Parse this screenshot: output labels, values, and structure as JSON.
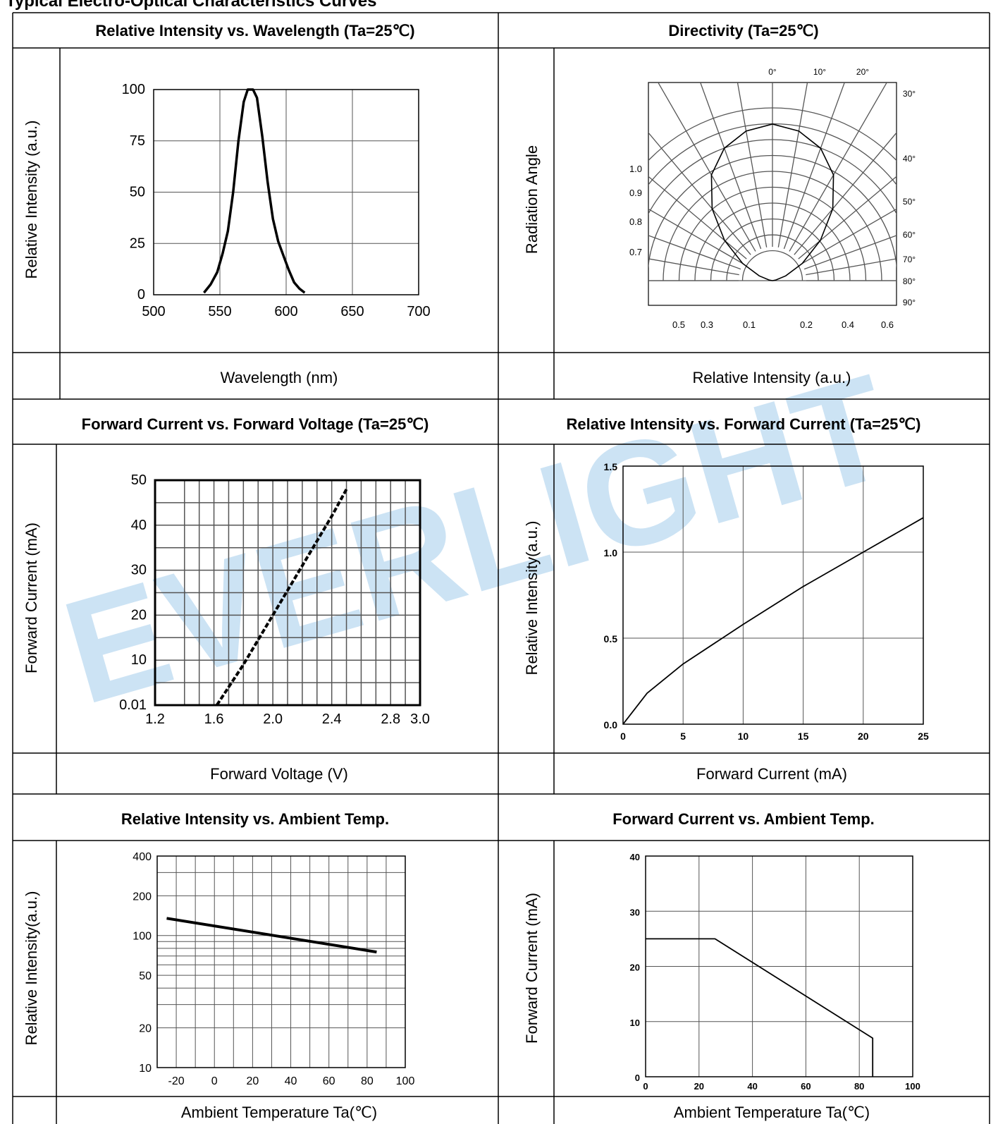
{
  "page_title": "Typical Electro-Optical Characteristics Curves",
  "watermark_text": "EVERLIGHT",
  "colors": {
    "border": "#000000",
    "grid": "#555555",
    "curve": "#000000",
    "watermark": "#8ec2e6"
  },
  "chart_data": [
    {
      "id": "spectrum",
      "type": "line",
      "title": "Relative Intensity vs. Wavelength (Ta=25℃)",
      "ylabel": "Relative Intensity (a.u.)",
      "xlabel": "Wavelength (nm)",
      "xlim": [
        500,
        700
      ],
      "ylim": [
        0,
        100
      ],
      "x_ticks": [
        "500",
        "550",
        "600",
        "650",
        "700"
      ],
      "y_ticks": [
        "0",
        "25",
        "50",
        "75",
        "100"
      ],
      "grid": true,
      "series": [
        {
          "x": [
            538,
            543,
            548,
            552,
            556,
            560,
            564,
            568,
            571,
            575,
            578,
            582,
            586,
            590,
            594,
            598,
            602,
            606,
            610,
            614
          ],
          "values": [
            1,
            5,
            11,
            20,
            31,
            50,
            75,
            94,
            100,
            100,
            96,
            77,
            55,
            37,
            26,
            19,
            12,
            6,
            3,
            1
          ]
        }
      ]
    },
    {
      "id": "directivity",
      "type": "polar",
      "title": "Directivity (Ta=25℃)",
      "ylabel": "Radiation Angle",
      "xlabel": "Relative Intensity (a.u.)",
      "angle_labels": [
        "0°",
        "10°",
        "20°",
        "30°",
        "40°",
        "50°",
        "60°",
        "70°",
        "80°",
        "90°"
      ],
      "left_scale_labels": [
        "1.0",
        "0.9",
        "0.8",
        "0.7"
      ],
      "bottom_labels_left": [
        "0.5",
        "0.3",
        "0.1"
      ],
      "bottom_labels_right": [
        "0.2",
        "0.4",
        "0.6"
      ],
      "series": [
        {
          "angle_deg": [
            0,
            10,
            20,
            30,
            40,
            50,
            60,
            70,
            80,
            90
          ],
          "values": [
            1.0,
            0.97,
            0.9,
            0.78,
            0.6,
            0.4,
            0.22,
            0.09,
            0.02,
            0.0
          ]
        }
      ]
    },
    {
      "id": "iv",
      "type": "line",
      "title": "Forward Current vs. Forward Voltage (Ta=25℃)",
      "ylabel": "Forward Current (mA)",
      "xlabel": "Forward Voltage (V)",
      "xlim": [
        1.2,
        3.0
      ],
      "ylim": [
        0,
        50
      ],
      "x_ticks": [
        "1.2",
        "1.6",
        "2.0",
        "2.4",
        "2.8",
        "3.0"
      ],
      "y_ticks": [
        "0.01",
        "10",
        "20",
        "30",
        "40",
        "50"
      ],
      "grid": true,
      "series": [
        {
          "x": [
            1.62,
            1.8,
            2.0,
            2.2,
            2.4,
            2.5
          ],
          "values": [
            0.01,
            9,
            20,
            31,
            42,
            48
          ]
        }
      ]
    },
    {
      "id": "iv_rel",
      "type": "line",
      "title": "Relative Intensity vs. Forward Current (Ta=25℃)",
      "ylabel": "Relative Intensity(a.u.)",
      "xlabel": "Forward Current (mA)",
      "xlim": [
        0,
        25
      ],
      "ylim": [
        0.0,
        1.5
      ],
      "x_ticks": [
        "0",
        "5",
        "10",
        "15",
        "20",
        "25"
      ],
      "y_ticks": [
        "0.0",
        "0.5",
        "1.0",
        "1.5"
      ],
      "grid": true,
      "series": [
        {
          "x": [
            0,
            2,
            5,
            10,
            15,
            20,
            25
          ],
          "values": [
            0.0,
            0.18,
            0.35,
            0.58,
            0.8,
            1.0,
            1.2
          ]
        }
      ]
    },
    {
      "id": "temp_intensity",
      "type": "line",
      "title": "Relative Intensity vs. Ambient Temp.",
      "ylabel": "Relative Intensity(a.u.)",
      "xlabel": "Ambient Temperature Ta(℃)",
      "xlim": [
        -30,
        100
      ],
      "ylim": [
        10,
        400
      ],
      "yscale": "log",
      "x_ticks": [
        "-20",
        "0",
        "20",
        "40",
        "60",
        "80",
        "100"
      ],
      "y_ticks": [
        "10",
        "20",
        "50",
        "100",
        "200",
        "400"
      ],
      "grid": true,
      "series": [
        {
          "x": [
            -25,
            85
          ],
          "values": [
            135,
            75
          ]
        }
      ]
    },
    {
      "id": "derating",
      "type": "line",
      "title": "Forward Current vs. Ambient Temp.",
      "ylabel": "Forward Current (mA)",
      "xlabel": "Ambient Temperature Ta(℃)",
      "xlim": [
        0,
        100
      ],
      "ylim": [
        0,
        40
      ],
      "x_ticks": [
        "0",
        "20",
        "40",
        "60",
        "80",
        "100"
      ],
      "y_ticks": [
        "0",
        "10",
        "20",
        "30",
        "40"
      ],
      "grid": true,
      "series": [
        {
          "x": [
            0,
            26,
            85,
            85
          ],
          "values": [
            25,
            25,
            7,
            0
          ]
        }
      ]
    }
  ]
}
